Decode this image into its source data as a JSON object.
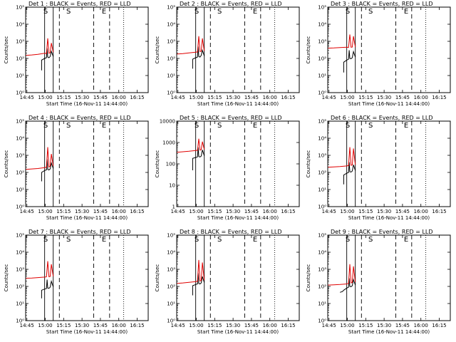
{
  "colors": {
    "events": "#000000",
    "lld": "#e00000",
    "axis": "#000000"
  },
  "chart_data": {
    "type": "line",
    "layout": "3x3 grid",
    "common": {
      "xlabel": "Start Time (16-Nov-11 14:44:00)",
      "ylabel": "Counts/sec",
      "x_tick_labels": [
        "14:45",
        "15:00",
        "15:15",
        "15:30",
        "15:45",
        "16:00",
        "16:15"
      ],
      "x_ticks_minutes": [
        1,
        16,
        31,
        46,
        61,
        76,
        91
      ],
      "xlim_minutes": [
        0,
        100
      ],
      "log_scale_y": true,
      "grid": false,
      "solid_vlines_min": [
        15.5,
        22.5
      ],
      "dashed_vlines_min": [
        27.5,
        55.5,
        68.5
      ],
      "dotted_vlines_min": [
        80
      ],
      "markers": [
        {
          "label": "S",
          "x_min": 16.3
        },
        {
          "label": "S",
          "x_min": 35
        },
        {
          "label": "E",
          "x_min": 64
        }
      ],
      "series_names": [
        "Events",
        "LLD"
      ]
    },
    "panels": [
      {
        "title": "Det 1 : BLACK = Events, RED = LLD",
        "ylim": [
          1,
          100000
        ],
        "y_tick_labels": [
          "10⁰",
          "10¹",
          "10²",
          "10³",
          "10⁴",
          "10⁵"
        ],
        "lld": {
          "x": [
            0,
            5,
            10,
            15.5,
            17,
            18,
            19,
            20,
            21,
            22.5
          ],
          "y": [
            150,
            160,
            175,
            200,
            190,
            1500,
            200,
            220,
            800,
            230
          ]
        },
        "events": {
          "x": [
            13,
            13,
            15.5,
            17,
            17.5,
            18,
            19,
            20,
            21,
            22.5
          ],
          "y": [
            20,
            80,
            100,
            110,
            400,
            120,
            110,
            130,
            260,
            130
          ]
        }
      },
      {
        "title": "Det 2 : BLACK = Events, RED = LLD",
        "ylim": [
          1,
          100000
        ],
        "y_tick_labels": [
          "10⁰",
          "10¹",
          "10²",
          "10³",
          "10⁴",
          "10⁵"
        ],
        "lld": {
          "x": [
            0,
            5,
            10,
            15.5,
            17,
            18,
            19,
            20,
            21,
            22.5
          ],
          "y": [
            180,
            190,
            210,
            230,
            240,
            2000,
            250,
            260,
            1500,
            270
          ]
        },
        "events": {
          "x": [
            13,
            13,
            15.5,
            17,
            17.5,
            18,
            19,
            20,
            21,
            22.5
          ],
          "y": [
            25,
            90,
            110,
            120,
            500,
            130,
            120,
            150,
            300,
            140
          ]
        }
      },
      {
        "title": "Det 3 : BLACK = Events, RED = LLD",
        "ylim": [
          1,
          100000
        ],
        "y_tick_labels": [
          "10⁰",
          "10¹",
          "10²",
          "10³",
          "10⁴",
          "10⁵"
        ],
        "lld": {
          "x": [
            0,
            5,
            10,
            15.5,
            17,
            18,
            19,
            20,
            21,
            22.5
          ],
          "y": [
            400,
            410,
            430,
            450,
            440,
            2500,
            450,
            460,
            2000,
            470
          ]
        },
        "events": {
          "x": [
            13,
            13,
            15.5,
            17,
            17.5,
            18,
            19,
            20,
            21,
            22.5
          ],
          "y": [
            15,
            60,
            80,
            90,
            300,
            100,
            95,
            110,
            250,
            120
          ]
        }
      },
      {
        "title": "Det 4 : BLACK = Events, RED = LLD",
        "ylim": [
          1,
          100000
        ],
        "y_tick_labels": [
          "10⁰",
          "10¹",
          "10²",
          "10³",
          "10⁴",
          "10⁵"
        ],
        "lld": {
          "x": [
            0,
            5,
            10,
            15.5,
            17,
            18,
            19,
            20,
            21,
            22.5
          ],
          "y": [
            150,
            160,
            170,
            190,
            200,
            3000,
            210,
            230,
            1200,
            240
          ]
        },
        "events": {
          "x": [
            13,
            13,
            15.5,
            17,
            17.5,
            18,
            19,
            20,
            21,
            22.5
          ],
          "y": [
            30,
            100,
            130,
            140,
            600,
            150,
            140,
            160,
            350,
            170
          ]
        }
      },
      {
        "title": "Det 5 : BLACK = Events, RED = LLD",
        "ylim": [
          1,
          10000
        ],
        "y_tick_labels": [
          "1",
          "10",
          "100",
          "1000",
          "10000"
        ],
        "lld": {
          "x": [
            0,
            5,
            10,
            15.5,
            17,
            18,
            19,
            20,
            21,
            22.5
          ],
          "y": [
            350,
            370,
            390,
            420,
            430,
            1500,
            440,
            460,
            1100,
            470
          ]
        },
        "events": {
          "x": [
            13,
            13,
            15.5,
            17,
            17.5,
            18,
            19,
            20,
            21,
            22.5
          ],
          "y": [
            50,
            180,
            200,
            210,
            600,
            220,
            210,
            230,
            450,
            240
          ]
        }
      },
      {
        "title": "Det 6 : BLACK = Events, RED = LLD",
        "ylim": [
          1,
          100000
        ],
        "y_tick_labels": [
          "10⁰",
          "10¹",
          "10²",
          "10³",
          "10⁴",
          "10⁵"
        ],
        "lld": {
          "x": [
            0,
            5,
            10,
            15.5,
            17,
            18,
            19,
            20,
            21,
            22.5
          ],
          "y": [
            200,
            210,
            220,
            240,
            250,
            3000,
            260,
            270,
            2500,
            280
          ]
        },
        "events": {
          "x": [
            13,
            13,
            15.5,
            17,
            17.5,
            18,
            19,
            20,
            21,
            22.5
          ],
          "y": [
            20,
            70,
            90,
            100,
            400,
            110,
            105,
            120,
            280,
            130
          ]
        }
      },
      {
        "title": "Det 7 : BLACK = Events, RED = LLD",
        "ylim": [
          1,
          100000
        ],
        "y_tick_labels": [
          "10⁰",
          "10¹",
          "10²",
          "10³",
          "10⁴",
          "10⁵"
        ],
        "lld": {
          "x": [
            0,
            5,
            10,
            15.5,
            17,
            18,
            19,
            20,
            21,
            22.5
          ],
          "y": [
            300,
            310,
            330,
            350,
            360,
            3000,
            370,
            380,
            2000,
            390
          ]
        },
        "events": {
          "x": [
            13,
            13,
            15.5,
            17,
            17.5,
            18,
            19,
            20,
            21,
            22.5
          ],
          "y": [
            20,
            60,
            70,
            75,
            250,
            80,
            78,
            90,
            200,
            95
          ]
        }
      },
      {
        "title": "Det 8 : BLACK = Events, RED = LLD",
        "ylim": [
          1,
          100000
        ],
        "y_tick_labels": [
          "10⁰",
          "10¹",
          "10²",
          "10³",
          "10⁴",
          "10⁵"
        ],
        "lld": {
          "x": [
            0,
            5,
            10,
            15.5,
            17,
            18,
            19,
            20,
            21,
            22.5
          ],
          "y": [
            150,
            160,
            175,
            190,
            200,
            3500,
            210,
            220,
            2500,
            230
          ]
        },
        "events": {
          "x": [
            13,
            13,
            15.5,
            17,
            17.5,
            18,
            19,
            20,
            21,
            22.5
          ],
          "y": [
            30,
            110,
            130,
            140,
            600,
            150,
            140,
            160,
            380,
            170
          ]
        }
      },
      {
        "title": "Det 9 : BLACK = Events, RED = LLD",
        "ylim": [
          1,
          100000
        ],
        "y_tick_labels": [
          "10⁰",
          "10¹",
          "10²",
          "10³",
          "10⁴",
          "10⁵"
        ],
        "lld": {
          "x": [
            0,
            5,
            10,
            13,
            15.5,
            17,
            18,
            19,
            20,
            21,
            22.5
          ],
          "y": [
            120,
            125,
            130,
            135,
            140,
            150,
            2000,
            160,
            170,
            1500,
            180
          ]
        },
        "events": {
          "x": [
            10,
            12,
            13,
            15.5,
            17,
            17.5,
            18,
            19,
            20,
            21,
            22.5
          ],
          "y": [
            45,
            50,
            60,
            80,
            90,
            300,
            100,
            95,
            110,
            250,
            120
          ]
        }
      }
    ]
  }
}
